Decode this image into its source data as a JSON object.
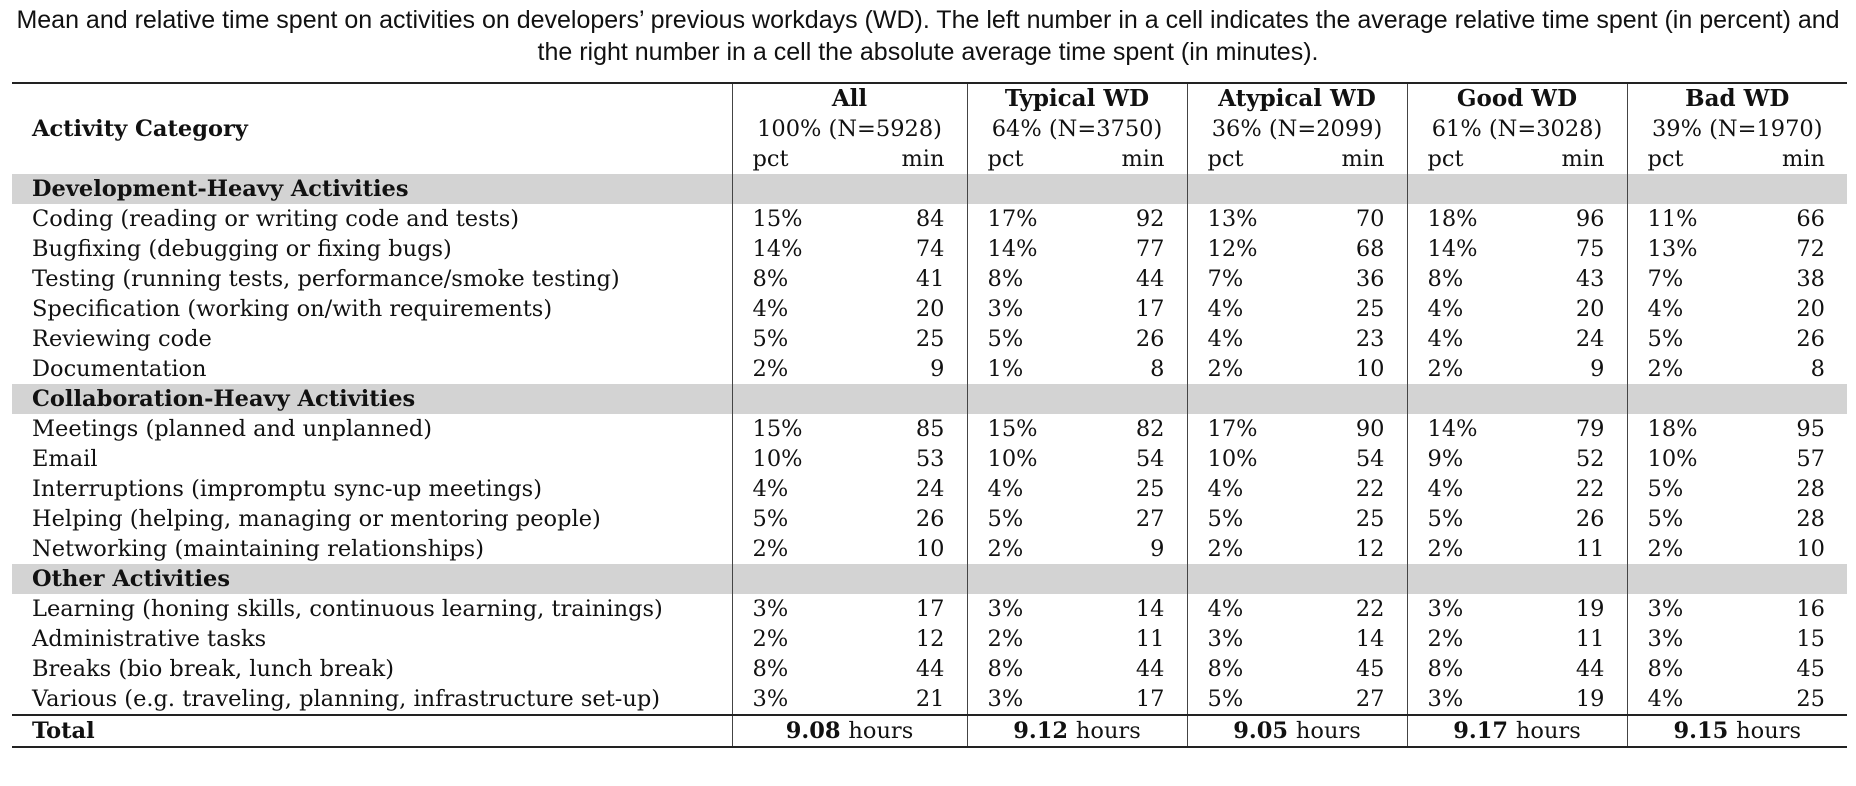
{
  "caption": "Mean and relative time spent on activities on developers’ previous workdays (WD). The left number in a cell indicates the average relative time spent (in percent) and the right number in a cell the absolute average time spent (in minutes).",
  "header": {
    "activity_label": "Activity Category",
    "groups": [
      {
        "name": "All",
        "share": "100% (N=5928)"
      },
      {
        "name": "Typical WD",
        "share": "64% (N=3750)"
      },
      {
        "name": "Atypical WD",
        "share": "36% (N=2099)"
      },
      {
        "name": "Good WD",
        "share": "61% (N=3028)"
      },
      {
        "name": "Bad WD",
        "share": "39% (N=1970)"
      }
    ],
    "pct_label": "pct",
    "min_label": "min"
  },
  "sections": [
    {
      "title": "Development-Heavy Activities",
      "rows": [
        {
          "activity": "Coding (reading or writing code and tests)",
          "values": [
            [
              "15%",
              "84"
            ],
            [
              "17%",
              "92"
            ],
            [
              "13%",
              "70"
            ],
            [
              "18%",
              "96"
            ],
            [
              "11%",
              "66"
            ]
          ]
        },
        {
          "activity": "Bugfixing (debugging or fixing bugs)",
          "values": [
            [
              "14%",
              "74"
            ],
            [
              "14%",
              "77"
            ],
            [
              "12%",
              "68"
            ],
            [
              "14%",
              "75"
            ],
            [
              "13%",
              "72"
            ]
          ]
        },
        {
          "activity": "Testing (running tests, performance/smoke testing)",
          "values": [
            [
              "8%",
              "41"
            ],
            [
              "8%",
              "44"
            ],
            [
              "7%",
              "36"
            ],
            [
              "8%",
              "43"
            ],
            [
              "7%",
              "38"
            ]
          ]
        },
        {
          "activity": "Specification (working on/with requirements)",
          "values": [
            [
              "4%",
              "20"
            ],
            [
              "3%",
              "17"
            ],
            [
              "4%",
              "25"
            ],
            [
              "4%",
              "20"
            ],
            [
              "4%",
              "20"
            ]
          ]
        },
        {
          "activity": "Reviewing code",
          "values": [
            [
              "5%",
              "25"
            ],
            [
              "5%",
              "26"
            ],
            [
              "4%",
              "23"
            ],
            [
              "4%",
              "24"
            ],
            [
              "5%",
              "26"
            ]
          ]
        },
        {
          "activity": "Documentation",
          "values": [
            [
              "2%",
              "9"
            ],
            [
              "1%",
              "8"
            ],
            [
              "2%",
              "10"
            ],
            [
              "2%",
              "9"
            ],
            [
              "2%",
              "8"
            ]
          ]
        }
      ]
    },
    {
      "title": "Collaboration-Heavy Activities",
      "rows": [
        {
          "activity": "Meetings (planned and unplanned)",
          "values": [
            [
              "15%",
              "85"
            ],
            [
              "15%",
              "82"
            ],
            [
              "17%",
              "90"
            ],
            [
              "14%",
              "79"
            ],
            [
              "18%",
              "95"
            ]
          ]
        },
        {
          "activity": "Email",
          "values": [
            [
              "10%",
              "53"
            ],
            [
              "10%",
              "54"
            ],
            [
              "10%",
              "54"
            ],
            [
              "9%",
              "52"
            ],
            [
              "10%",
              "57"
            ]
          ]
        },
        {
          "activity": "Interruptions (impromptu sync-up meetings)",
          "values": [
            [
              "4%",
              "24"
            ],
            [
              "4%",
              "25"
            ],
            [
              "4%",
              "22"
            ],
            [
              "4%",
              "22"
            ],
            [
              "5%",
              "28"
            ]
          ]
        },
        {
          "activity": "Helping (helping, managing or mentoring people)",
          "values": [
            [
              "5%",
              "26"
            ],
            [
              "5%",
              "27"
            ],
            [
              "5%",
              "25"
            ],
            [
              "5%",
              "26"
            ],
            [
              "5%",
              "28"
            ]
          ]
        },
        {
          "activity": "Networking (maintaining relationships)",
          "values": [
            [
              "2%",
              "10"
            ],
            [
              "2%",
              "9"
            ],
            [
              "2%",
              "12"
            ],
            [
              "2%",
              "11"
            ],
            [
              "2%",
              "10"
            ]
          ]
        }
      ]
    },
    {
      "title": "Other Activities",
      "rows": [
        {
          "activity": "Learning (honing skills, continuous learning, trainings)",
          "values": [
            [
              "3%",
              "17"
            ],
            [
              "3%",
              "14"
            ],
            [
              "4%",
              "22"
            ],
            [
              "3%",
              "19"
            ],
            [
              "3%",
              "16"
            ]
          ]
        },
        {
          "activity": "Administrative tasks",
          "values": [
            [
              "2%",
              "12"
            ],
            [
              "2%",
              "11"
            ],
            [
              "3%",
              "14"
            ],
            [
              "2%",
              "11"
            ],
            [
              "3%",
              "15"
            ]
          ]
        },
        {
          "activity": "Breaks (bio break, lunch break)",
          "values": [
            [
              "8%",
              "44"
            ],
            [
              "8%",
              "44"
            ],
            [
              "8%",
              "45"
            ],
            [
              "8%",
              "44"
            ],
            [
              "8%",
              "45"
            ]
          ]
        },
        {
          "activity": "Various (e.g. traveling, planning, infrastructure set-up)",
          "values": [
            [
              "3%",
              "21"
            ],
            [
              "3%",
              "17"
            ],
            [
              "5%",
              "27"
            ],
            [
              "3%",
              "19"
            ],
            [
              "4%",
              "25"
            ]
          ]
        }
      ]
    }
  ],
  "total": {
    "label": "Total",
    "unit": "hours",
    "values": [
      "9.08",
      "9.12",
      "9.05",
      "9.17",
      "9.15"
    ]
  },
  "colors": {
    "section_band": "#d3d3d3",
    "rule": "#222222"
  }
}
